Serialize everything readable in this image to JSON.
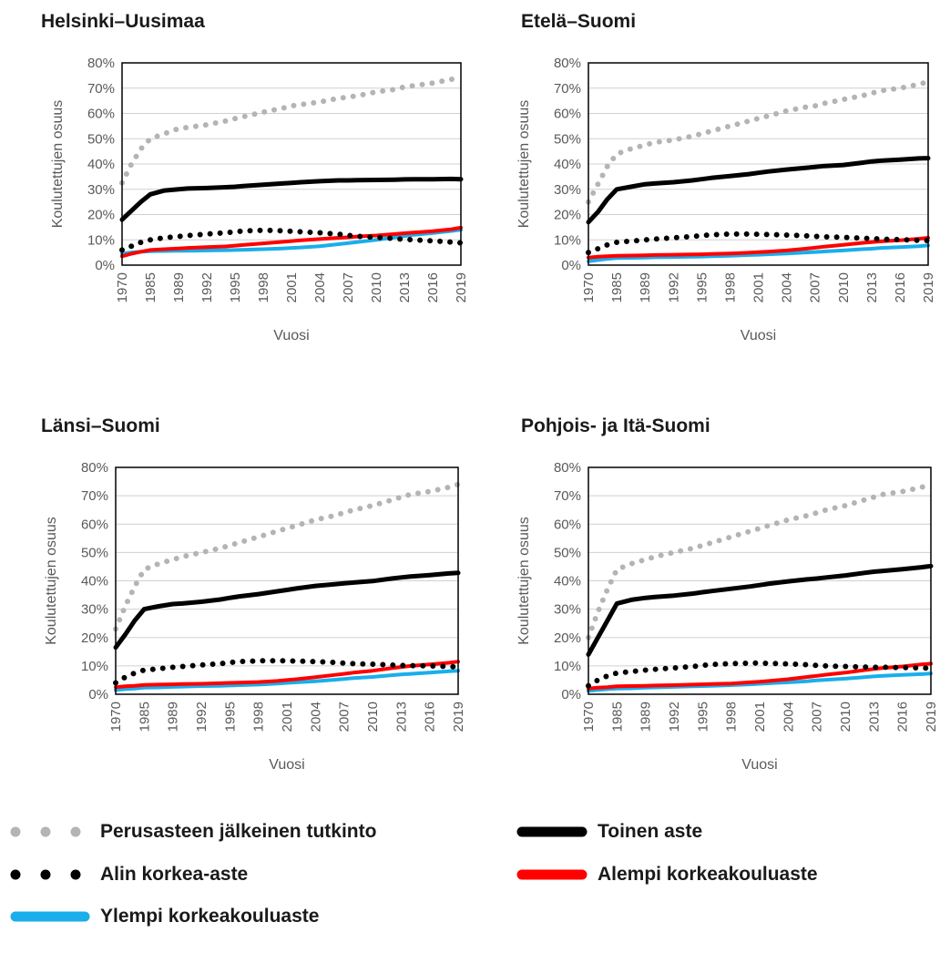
{
  "colors": {
    "perusaste": "#b4b4b4",
    "toinen": "#000000",
    "alin": "#000000",
    "alempi": "#ff0000",
    "ylempi": "#1aaeea",
    "grid": "#d0d0d0",
    "axis_text": "#595959"
  },
  "legend": {
    "items": [
      {
        "key": "perusaste",
        "label": "Perusasteen jälkeinen tutkinto",
        "style": "dotted",
        "position": "row1-left"
      },
      {
        "key": "toinen",
        "label": "Toinen aste",
        "style": "solid",
        "position": "row1-right"
      },
      {
        "key": "alin",
        "label": "Alin korkea-aste",
        "style": "dotted",
        "position": "row2-left"
      },
      {
        "key": "alempi",
        "label": "Alempi korkeakouluaste",
        "style": "solid",
        "position": "row2-right"
      },
      {
        "key": "ylempi",
        "label": "Ylempi korkeakouluaste",
        "style": "solid",
        "position": "row3-left"
      }
    ]
  },
  "chart_data": [
    {
      "type": "line",
      "title": "Helsinki–Uusimaa",
      "xlabel": "Vuosi",
      "ylabel": "Koulutettujen osuus",
      "x_ticks": [
        "1970",
        "1985",
        "1989",
        "1992",
        "1995",
        "1998",
        "2001",
        "2004",
        "2007",
        "2010",
        "2013",
        "2016",
        "2019"
      ],
      "y_ticks": [
        "0%",
        "10%",
        "20%",
        "30%",
        "40%",
        "50%",
        "60%",
        "70%",
        "80%"
      ],
      "ylim": [
        0,
        80
      ],
      "grid": true,
      "x": [
        1970,
        1975,
        1980,
        1985,
        1987,
        1989,
        1990,
        1992,
        1994,
        1995,
        1996,
        1998,
        2000,
        2001,
        2002,
        2004,
        2006,
        2007,
        2008,
        2010,
        2012,
        2013,
        2014,
        2016,
        2018,
        2019
      ],
      "series": [
        {
          "key": "perusaste",
          "values": [
            32.5,
            40,
            46,
            50,
            52,
            54,
            54.5,
            55.5,
            57,
            58,
            58.8,
            60.5,
            62,
            63,
            63.5,
            64.5,
            66,
            66.5,
            67,
            68.5,
            69.5,
            70.5,
            71,
            72,
            73.5,
            74.2
          ]
        },
        {
          "key": "toinen",
          "values": [
            18,
            21.5,
            25,
            28,
            29.5,
            30,
            30.3,
            30.5,
            30.8,
            31,
            31.3,
            31.8,
            32.3,
            32.5,
            32.8,
            33.2,
            33.5,
            33.5,
            33.6,
            33.7,
            33.8,
            33.9,
            34,
            34,
            34.1,
            34
          ]
        },
        {
          "key": "alin",
          "values": [
            6,
            7.5,
            9,
            10,
            10.8,
            11.3,
            11.7,
            12.3,
            12.8,
            13.2,
            13.5,
            13.8,
            13.6,
            13.4,
            13.2,
            12.8,
            12.2,
            11.8,
            11.4,
            11,
            10.5,
            10.2,
            10,
            9.6,
            9.1,
            8.8
          ]
        },
        {
          "key": "alempi",
          "values": [
            3.5,
            4.5,
            5.3,
            6,
            6.3,
            6.6,
            6.8,
            7.1,
            7.4,
            7.7,
            8,
            8.6,
            9.2,
            9.5,
            9.8,
            10.3,
            10.8,
            11,
            11.3,
            11.7,
            12.3,
            12.6,
            12.9,
            13.4,
            14.2,
            14.8
          ]
        },
        {
          "key": "ylempi",
          "values": [
            4.5,
            5,
            5.3,
            5.5,
            5.6,
            5.7,
            5.7,
            5.8,
            5.9,
            6,
            6.1,
            6.3,
            6.6,
            6.8,
            7,
            7.5,
            8.3,
            8.7,
            9.1,
            10,
            11,
            11.5,
            12,
            12.7,
            13.5,
            14
          ]
        }
      ]
    },
    {
      "type": "line",
      "title": "Etelä–Suomi",
      "xlabel": "Vuosi",
      "ylabel": "Koulutettujen osuus",
      "x_ticks": [
        "1970",
        "1985",
        "1989",
        "1992",
        "1995",
        "1998",
        "2001",
        "2004",
        "2007",
        "2010",
        "2013",
        "2016",
        "2019"
      ],
      "y_ticks": [
        "0%",
        "10%",
        "20%",
        "30%",
        "40%",
        "50%",
        "60%",
        "70%",
        "80%"
      ],
      "ylim": [
        0,
        80
      ],
      "grid": true,
      "x": [
        1970,
        1975,
        1980,
        1985,
        1987,
        1989,
        1990,
        1992,
        1994,
        1995,
        1996,
        1998,
        2000,
        2001,
        2002,
        2004,
        2006,
        2007,
        2008,
        2010,
        2012,
        2013,
        2014,
        2016,
        2018,
        2019
      ],
      "series": [
        {
          "key": "perusaste",
          "values": [
            25,
            32,
            39,
            44,
            46,
            47.5,
            48.5,
            49.5,
            51,
            52,
            53,
            55,
            57,
            58,
            59,
            61,
            62.5,
            63,
            64,
            65.5,
            67,
            68,
            69,
            70,
            71.5,
            72.5
          ]
        },
        {
          "key": "toinen",
          "values": [
            17,
            21,
            26,
            30,
            31,
            32,
            32.3,
            32.8,
            33.5,
            34,
            34.5,
            35.2,
            36,
            36.5,
            37,
            37.8,
            38.5,
            38.8,
            39.2,
            39.6,
            40.5,
            41,
            41.3,
            41.7,
            42.2,
            42.3
          ]
        },
        {
          "key": "alin",
          "values": [
            5,
            6.5,
            8,
            9,
            9.5,
            10,
            10.3,
            10.8,
            11.3,
            11.7,
            12,
            12.3,
            12.3,
            12.2,
            12.1,
            11.9,
            11.6,
            11.4,
            11.2,
            11,
            10.7,
            10.5,
            10.3,
            10.1,
            9.8,
            9.7
          ]
        },
        {
          "key": "alempi",
          "values": [
            3,
            3.3,
            3.5,
            3.7,
            3.8,
            3.9,
            4,
            4.1,
            4.2,
            4.3,
            4.4,
            4.6,
            4.9,
            5.1,
            5.3,
            5.8,
            6.5,
            6.9,
            7.3,
            8,
            8.8,
            9.1,
            9.4,
            9.8,
            10.4,
            10.8
          ]
        },
        {
          "key": "ylempi",
          "values": [
            1.5,
            2,
            2.5,
            2.8,
            2.9,
            3,
            3.1,
            3.2,
            3.3,
            3.4,
            3.5,
            3.7,
            4,
            4.1,
            4.3,
            4.6,
            5,
            5.2,
            5.4,
            5.8,
            6.3,
            6.5,
            6.8,
            7.1,
            7.5,
            7.8
          ]
        }
      ]
    },
    {
      "type": "line",
      "title": "Länsi–Suomi",
      "xlabel": "Vuosi",
      "ylabel": "Koulutettujen osuus",
      "x_ticks": [
        "1970",
        "1985",
        "1989",
        "1992",
        "1995",
        "1998",
        "2001",
        "2004",
        "2007",
        "2010",
        "2013",
        "2016",
        "2019"
      ],
      "y_ticks": [
        "0%",
        "10%",
        "20%",
        "30%",
        "40%",
        "50%",
        "60%",
        "70%",
        "80%"
      ],
      "ylim": [
        0,
        80
      ],
      "grid": true,
      "x": [
        1970,
        1975,
        1980,
        1985,
        1987,
        1989,
        1990,
        1992,
        1994,
        1995,
        1996,
        1998,
        2000,
        2001,
        2002,
        2004,
        2006,
        2007,
        2008,
        2010,
        2012,
        2013,
        2014,
        2016,
        2018,
        2019
      ],
      "series": [
        {
          "key": "perusaste",
          "values": [
            23,
            31,
            38,
            44,
            46,
            47.5,
            48.5,
            50,
            51.5,
            52.5,
            53.5,
            55.5,
            57.5,
            58.5,
            59.5,
            61.5,
            63,
            64,
            65,
            66.5,
            68.5,
            69.5,
            70.5,
            71.5,
            73,
            74
          ]
        },
        {
          "key": "toinen",
          "values": [
            16.5,
            21,
            26,
            30,
            31,
            31.8,
            32,
            32.6,
            33.4,
            34,
            34.5,
            35.3,
            36.3,
            36.8,
            37.3,
            38.2,
            38.8,
            39.1,
            39.4,
            39.9,
            40.8,
            41.2,
            41.5,
            42,
            42.6,
            42.8
          ]
        },
        {
          "key": "alin",
          "values": [
            4,
            6,
            7.5,
            8.5,
            9,
            9.5,
            9.8,
            10.3,
            10.8,
            11.2,
            11.5,
            11.8,
            11.8,
            11.8,
            11.7,
            11.5,
            11.2,
            11,
            10.8,
            10.6,
            10.3,
            10.2,
            10.1,
            10,
            9.8,
            9.6
          ]
        },
        {
          "key": "alempi",
          "values": [
            2.5,
            2.8,
            3,
            3.3,
            3.4,
            3.5,
            3.6,
            3.7,
            3.9,
            4,
            4.1,
            4.3,
            4.7,
            5,
            5.3,
            6,
            6.8,
            7.2,
            7.6,
            8.3,
            9.2,
            9.6,
            10,
            10.5,
            11.1,
            11.5
          ]
        },
        {
          "key": "ylempi",
          "values": [
            1.5,
            1.8,
            2,
            2.3,
            2.4,
            2.6,
            2.7,
            2.9,
            3,
            3.1,
            3.2,
            3.4,
            3.8,
            4,
            4.2,
            4.6,
            5.1,
            5.4,
            5.7,
            6.1,
            6.7,
            7,
            7.2,
            7.6,
            8.1,
            8.3
          ]
        }
      ]
    },
    {
      "type": "line",
      "title": "Pohjois- ja Itä-Suomi",
      "xlabel": "Vuosi",
      "ylabel": "Koulutettujen osuus",
      "x_ticks": [
        "1970",
        "1985",
        "1989",
        "1992",
        "1995",
        "1998",
        "2001",
        "2004",
        "2007",
        "2010",
        "2013",
        "2016",
        "2019"
      ],
      "y_ticks": [
        "0%",
        "10%",
        "20%",
        "30%",
        "40%",
        "50%",
        "60%",
        "70%",
        "80%"
      ],
      "ylim": [
        0,
        80
      ],
      "grid": true,
      "x": [
        1970,
        1975,
        1980,
        1985,
        1987,
        1989,
        1990,
        1992,
        1994,
        1995,
        1996,
        1998,
        2000,
        2001,
        2002,
        2004,
        2006,
        2007,
        2008,
        2010,
        2012,
        2013,
        2014,
        2016,
        2018,
        2019
      ],
      "series": [
        {
          "key": "perusaste",
          "values": [
            20,
            29,
            37,
            44,
            46,
            47.5,
            48.5,
            50,
            51.5,
            52.5,
            53.5,
            55.5,
            57.5,
            58.5,
            59.5,
            61.5,
            63,
            64,
            65,
            66.5,
            68.5,
            69.5,
            70.5,
            71.5,
            73,
            74
          ]
        },
        {
          "key": "toinen",
          "values": [
            14,
            20,
            26,
            32,
            33.3,
            34,
            34.3,
            34.8,
            35.5,
            36,
            36.4,
            37.2,
            38,
            38.5,
            39,
            39.8,
            40.5,
            40.8,
            41.2,
            41.9,
            42.8,
            43.2,
            43.5,
            44.1,
            44.8,
            45.2
          ]
        },
        {
          "key": "alin",
          "values": [
            3,
            5,
            6.5,
            7.5,
            8,
            8.5,
            8.8,
            9.3,
            9.8,
            10.2,
            10.5,
            10.8,
            11,
            11,
            10.9,
            10.7,
            10.4,
            10.2,
            10,
            9.8,
            9.6,
            9.5,
            9.5,
            9.4,
            9.3,
            9.2
          ]
        },
        {
          "key": "alempi",
          "values": [
            2,
            2.3,
            2.5,
            2.8,
            2.9,
            3,
            3.1,
            3.2,
            3.4,
            3.5,
            3.6,
            3.8,
            4.2,
            4.4,
            4.7,
            5.3,
            6.1,
            6.5,
            6.9,
            7.6,
            8.5,
            8.9,
            9.3,
            9.8,
            10.5,
            10.8
          ]
        },
        {
          "key": "ylempi",
          "values": [
            1.2,
            1.5,
            1.8,
            2,
            2.1,
            2.3,
            2.4,
            2.6,
            2.8,
            2.9,
            3,
            3.2,
            3.5,
            3.7,
            3.9,
            4.2,
            4.6,
            4.9,
            5.1,
            5.5,
            6,
            6.3,
            6.5,
            6.8,
            7.1,
            7.3
          ]
        }
      ]
    }
  ]
}
